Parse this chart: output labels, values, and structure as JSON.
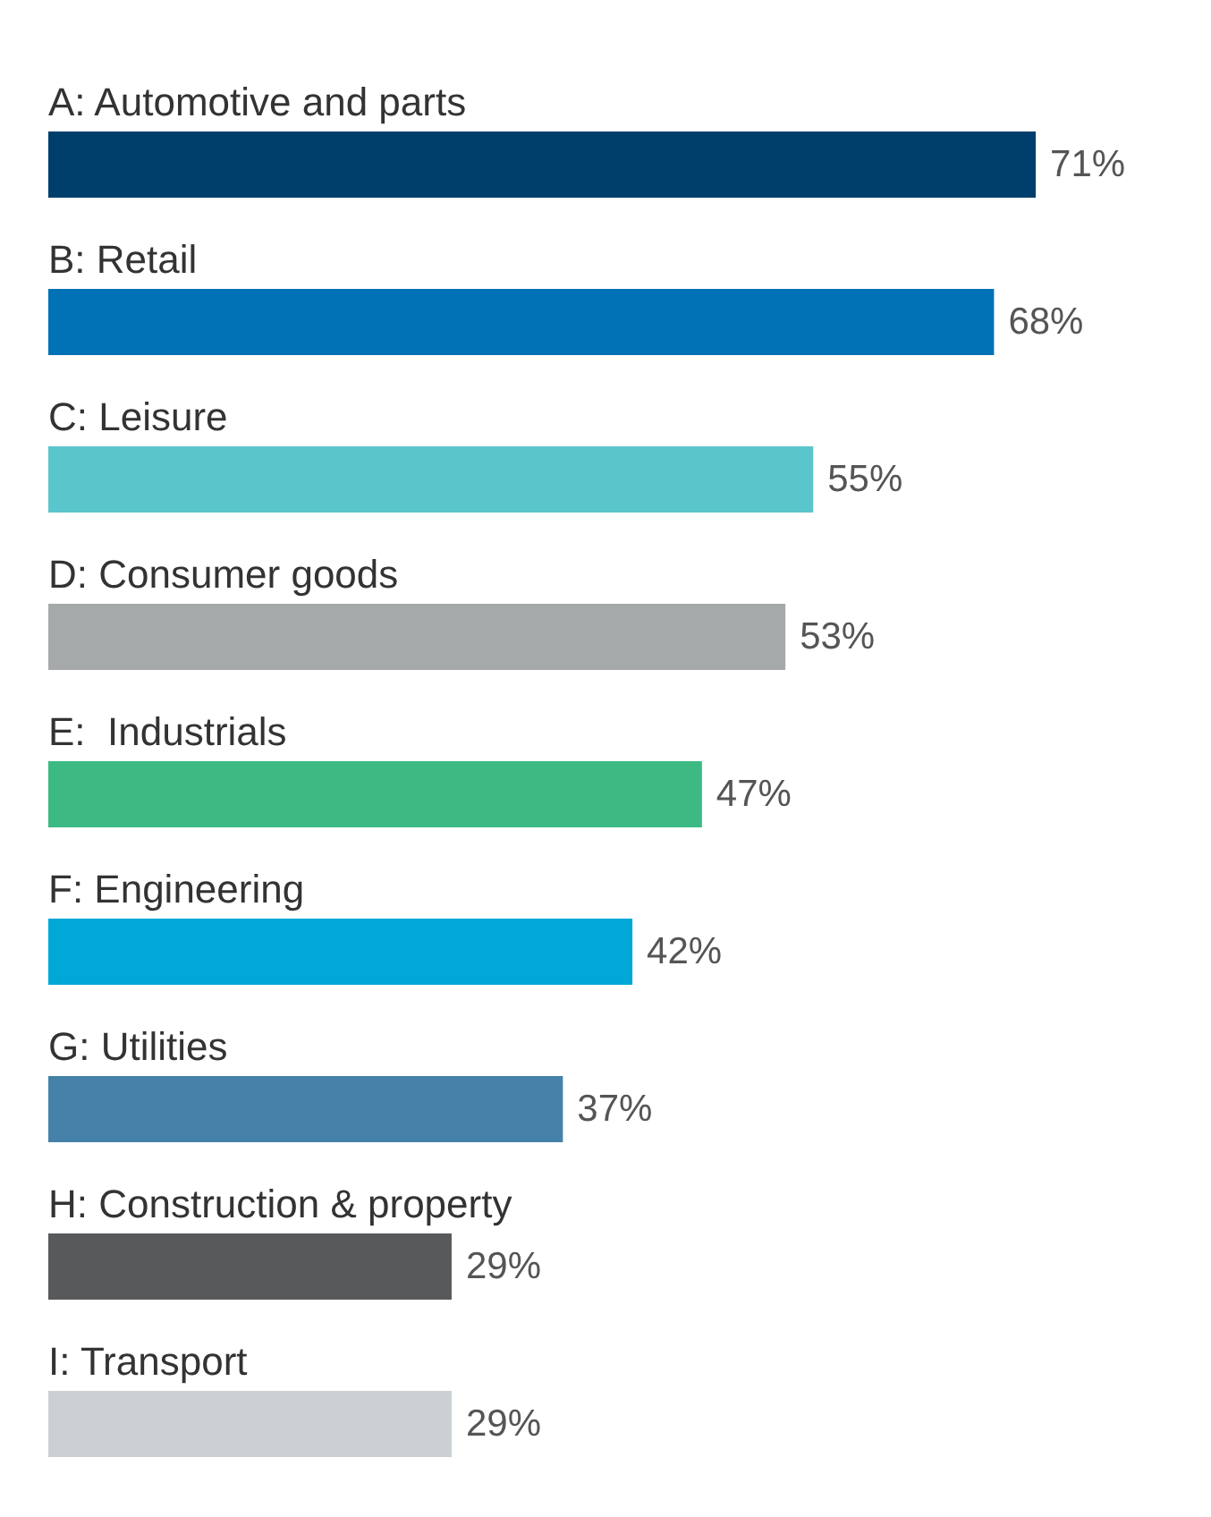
{
  "chart_data": {
    "type": "bar",
    "orientation": "horizontal",
    "categories": [
      "A: Automotive and parts",
      "B: Retail",
      "C: Leisure",
      "D: Consumer goods",
      "E:  Industrials",
      "F: Engineering",
      "G: Utilities",
      "H: Construction & property",
      "I: Transport"
    ],
    "values": [
      71,
      68,
      55,
      53,
      47,
      42,
      37,
      29,
      29
    ],
    "colors": [
      "#003f6b",
      "#0072b5",
      "#5bc5cc",
      "#a6a9aa",
      "#3dba84",
      "#00a8d8",
      "#4581a8",
      "#58595b",
      "#ccd0d2"
    ],
    "value_labels": [
      "71%",
      "68%",
      "55%",
      "53%",
      "47%",
      "42%",
      "37%",
      "29%",
      "29%"
    ]
  }
}
